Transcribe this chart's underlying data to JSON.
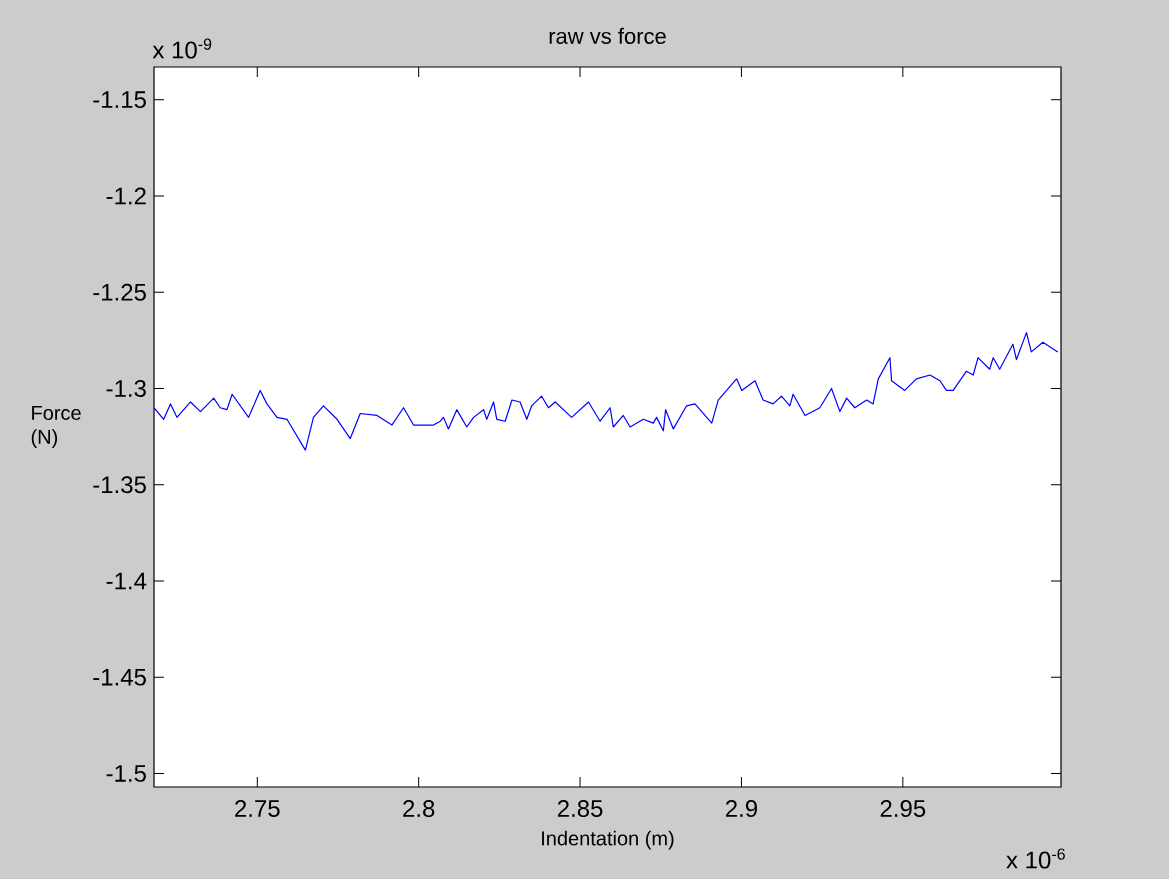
{
  "chart_data": {
    "type": "line",
    "title": "raw vs force",
    "xlabel": "Indentation (m)",
    "ylabel": "Force (N)",
    "annotations": [
      "x 10$^{-9}$",
      "x 10$^{-6}$"
    ],
    "xlim": [
      2.718,
      2.999
    ],
    "ylim": [
      -1.507,
      -1.133
    ],
    "xticks": [
      2.75,
      2.8,
      2.85,
      2.9,
      2.95
    ],
    "yticks": [
      -1.5,
      -1.45,
      -1.4,
      -1.35,
      -1.3,
      -1.25,
      -1.2,
      -1.15
    ],
    "x": [
      2.718,
      2.721,
      2.7231,
      2.7251,
      2.7293,
      2.7324,
      2.7365,
      2.7385,
      2.7406,
      2.7422,
      2.7473,
      2.7509,
      2.753,
      2.7561,
      2.7592,
      2.7649,
      2.7674,
      2.7705,
      2.7747,
      2.7788,
      2.7819,
      2.7871,
      2.7917,
      2.7953,
      2.7984,
      2.8046,
      2.8067,
      2.8077,
      2.8092,
      2.8118,
      2.8149,
      2.817,
      2.8201,
      2.8211,
      2.8232,
      2.8242,
      2.8268,
      2.8289,
      2.8314,
      2.8335,
      2.835,
      2.8381,
      2.8402,
      2.8423,
      2.8474,
      2.8526,
      2.8562,
      2.8593,
      2.8603,
      2.8634,
      2.8655,
      2.8696,
      2.8727,
      2.8737,
      2.8758,
      2.8765,
      2.8789,
      2.883,
      2.8856,
      2.8908,
      2.8928,
      2.8964,
      2.8985,
      2.9001,
      2.9042,
      2.9067,
      2.9098,
      2.9124,
      2.915,
      2.916,
      2.9197,
      2.9243,
      2.9279,
      2.9305,
      2.9326,
      2.9351,
      2.9388,
      2.9408,
      2.9424,
      2.946,
      2.9465,
      2.9506,
      2.9542,
      2.9584,
      2.9615,
      2.9635,
      2.9656,
      2.9697,
      2.9718,
      2.9733,
      2.9769,
      2.978,
      2.98,
      2.9841,
      2.9852,
      2.9883,
      2.9898,
      2.9934,
      2.998
    ],
    "series": [
      {
        "color": "#0000ff",
        "values": [
          -1.31,
          -1.316,
          -1.308,
          -1.315,
          -1.307,
          -1.312,
          -1.305,
          -1.31,
          -1.311,
          -1.303,
          -1.315,
          -1.301,
          -1.308,
          -1.315,
          -1.316,
          -1.332,
          -1.315,
          -1.309,
          -1.316,
          -1.326,
          -1.313,
          -1.314,
          -1.319,
          -1.31,
          -1.319,
          -1.319,
          -1.317,
          -1.315,
          -1.321,
          -1.311,
          -1.32,
          -1.315,
          -1.311,
          -1.316,
          -1.307,
          -1.316,
          -1.317,
          -1.306,
          -1.307,
          -1.316,
          -1.309,
          -1.304,
          -1.31,
          -1.307,
          -1.315,
          -1.307,
          -1.317,
          -1.31,
          -1.32,
          -1.314,
          -1.32,
          -1.316,
          -1.318,
          -1.315,
          -1.322,
          -1.311,
          -1.321,
          -1.309,
          -1.308,
          -1.318,
          -1.306,
          -1.299,
          -1.295,
          -1.301,
          -1.296,
          -1.306,
          -1.308,
          -1.304,
          -1.309,
          -1.303,
          -1.314,
          -1.31,
          -1.3,
          -1.312,
          -1.305,
          -1.31,
          -1.306,
          -1.308,
          -1.295,
          -1.284,
          -1.296,
          -1.301,
          -1.295,
          -1.293,
          -1.296,
          -1.301,
          -1.301,
          -1.291,
          -1.293,
          -1.284,
          -1.29,
          -1.284,
          -1.29,
          -1.277,
          -1.285,
          -1.271,
          -1.281,
          -1.276,
          -1.281
        ]
      }
    ]
  }
}
